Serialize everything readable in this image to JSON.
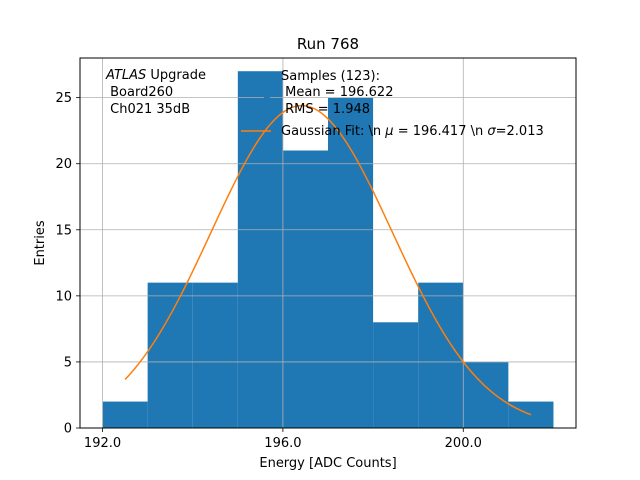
{
  "chart_data": {
    "type": "bar",
    "title": "Run 768",
    "xlabel": "Energy [ADC Counts]",
    "ylabel": "Entries",
    "xlim": [
      191.5,
      202.5
    ],
    "ylim": [
      0,
      28
    ],
    "x_ticks": [
      192.0,
      196.0,
      200.0
    ],
    "x_tick_labels": [
      "192.0",
      "196.0",
      "200.0"
    ],
    "y_ticks": [
      0,
      5,
      10,
      15,
      20,
      25
    ],
    "y_tick_labels": [
      "0",
      "5",
      "10",
      "15",
      "20",
      "25"
    ],
    "grid": true,
    "histogram": {
      "name": "Samples (123):",
      "bin_edges": [
        192.0,
        193.0,
        194.0,
        195.0,
        196.0,
        197.0,
        198.0,
        199.0,
        200.0,
        201.0,
        202.0
      ],
      "values": [
        2,
        11,
        11,
        27,
        21,
        25,
        8,
        11,
        5,
        2
      ],
      "color": "#1f77b4"
    },
    "fit": {
      "name": "Gaussian Fit",
      "mu": 196.417,
      "sigma": 2.013,
      "amplitude": 24.4,
      "x_range": [
        192.5,
        201.5
      ],
      "color": "#ff7f0e"
    },
    "annotation": {
      "line1_italic": "ATLAS",
      "line1_rest": " Upgrade",
      "line2": " Board260",
      "line3": " Ch021 35dB"
    },
    "legend": {
      "placement": "top-right",
      "samples_title": "Samples (123):",
      "mean_line": " Mean = 196.622",
      "rms_line": " RMS = 1.948",
      "fit_label_prefix": "Gaussian Fit: \\n ",
      "fit_mu_symbol": "μ",
      "fit_mu_text": " = 196.417 \\n ",
      "fit_sigma_symbol": "σ",
      "fit_sigma_text": "=2.013"
    }
  }
}
